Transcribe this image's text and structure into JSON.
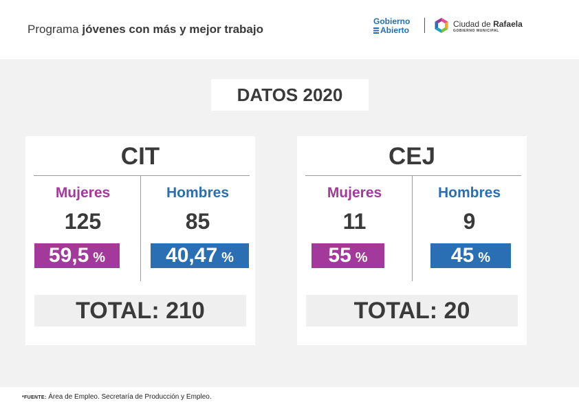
{
  "header": {
    "title_prefix": "Programa",
    "title_bold": "jóvenes con más y mejor trabajo",
    "logo_gobierno_line1": "Gobierno",
    "logo_gobierno_line2": "Abierto",
    "logo_ciudad": "Ciudad de",
    "logo_rafaela": "Rafaela",
    "logo_sub": "GOBIERNO MUNICIPAL"
  },
  "datos_title": "DATOS 2020",
  "colors": {
    "mujeres": "#a3399a",
    "hombres": "#2a6eb4",
    "text": "#3a3a3a",
    "background": "#f2f2f2"
  },
  "cards": [
    {
      "title": "CIT",
      "mujeres": {
        "label": "Mujeres",
        "count": "125",
        "percent": "59,5",
        "percent_symbol": "%"
      },
      "hombres": {
        "label": "Hombres",
        "count": "85",
        "percent": "40,47",
        "percent_symbol": "%"
      },
      "total": "TOTAL: 210"
    },
    {
      "title": "CEJ",
      "mujeres": {
        "label": "Mujeres",
        "count": "11",
        "percent": "55",
        "percent_symbol": "%"
      },
      "hombres": {
        "label": "Hombres",
        "count": "9",
        "percent": "45",
        "percent_symbol": "%"
      },
      "total": "TOTAL: 20"
    }
  ],
  "footer": {
    "label": "*FUENTE:",
    "text": "Área de Empleo. Secretaría de Producción y Empleo."
  }
}
